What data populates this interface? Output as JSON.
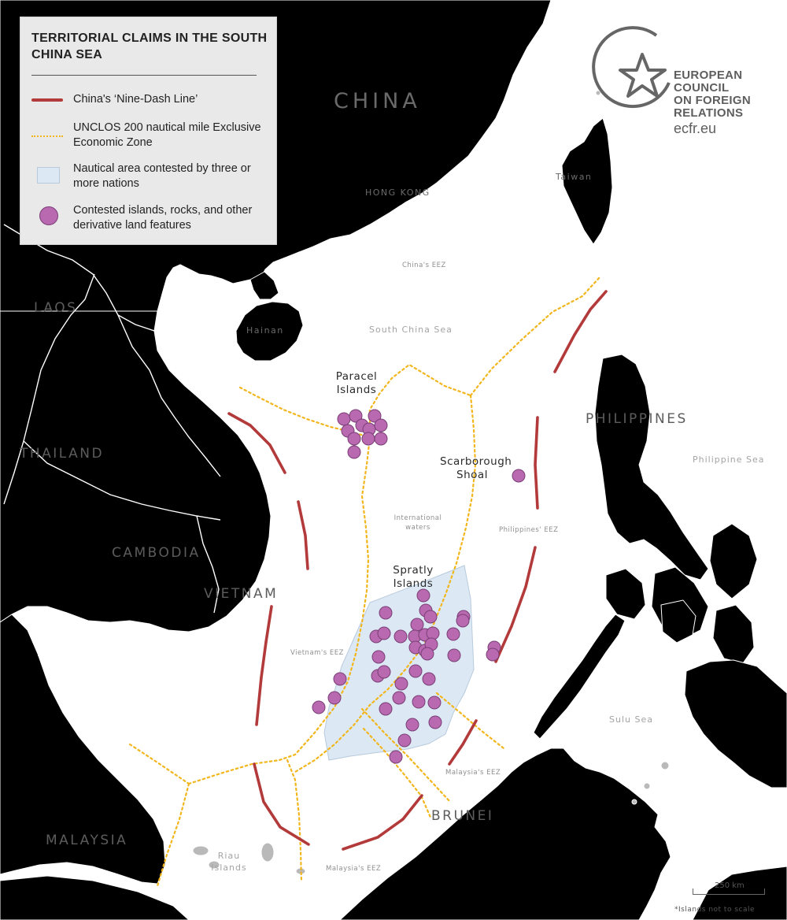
{
  "map": {
    "colors": {
      "land": "#b9b9b9",
      "sea": "#ffffff",
      "nine_dash_line": "#b33a3a",
      "eez_line": "#f2b61c",
      "contested_area": "#dce9f5",
      "contested_feature": "#b869b0"
    },
    "legend": {
      "title": "TERRITORIAL CLAIMS IN THE SOUTH CHINA SEA",
      "nine_dash": "China's ‘Nine-Dash Line’",
      "eez": "UNCLOS 200 nautical mile Exclusive Economic Zone",
      "contested_area": "Nautical area contested by three or more nations",
      "contested_features": "Contested islands, rocks, and other derivative land features"
    },
    "logo": {
      "lines": [
        "EUROPEAN",
        "COUNCIL",
        "ON FOREIGN",
        "RELATIONS"
      ],
      "url": "ecfr.eu"
    },
    "labels": {
      "china": "CHINA",
      "laos": "LAOS",
      "thailand": "THAILAND",
      "cambodia": "CAMBODIA",
      "vietnam": "VIETNAM",
      "philippines": "PHILIPPINES",
      "malaysia": "MALAYSIA",
      "brunei": "BRUNEI",
      "hong_kong": "HONG KONG",
      "taiwan": "Taiwan",
      "hainan": "Hainan",
      "south_china_sea": "South China Sea",
      "philippine_sea": "Philippine Sea",
      "sulu_sea": "Sulu Sea",
      "riau_islands": "Riau Islands",
      "china_eez": "China's EEZ",
      "international_waters": "International waters",
      "philippines_eez": "Philippines' EEZ",
      "vietnam_eez": "Vietnam's EEZ",
      "malaysia_eez_1": "Malaysia's EEZ",
      "malaysia_eez_2": "Malaysia's EEZ",
      "paracel": "Paracel Islands",
      "scarborough": "Scarborough Shoal",
      "spratly": "Spratly Islands"
    },
    "scale": "250 km",
    "footnote": "*Islands not to scale"
  }
}
